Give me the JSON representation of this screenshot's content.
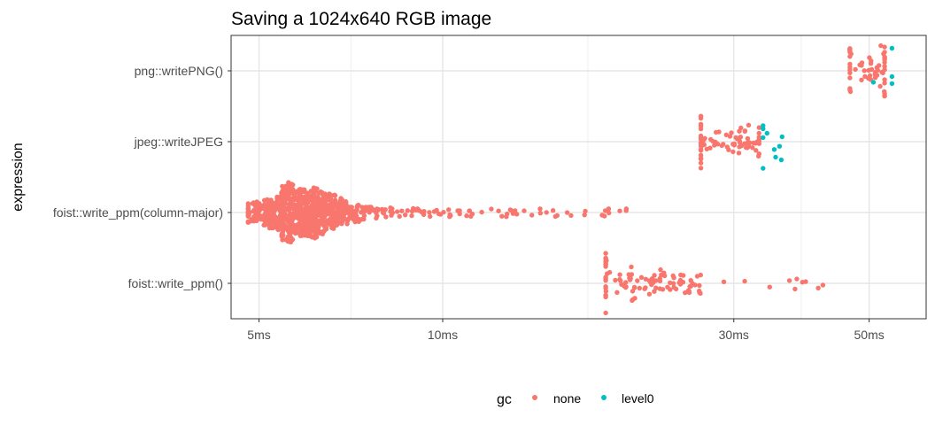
{
  "chart_data": {
    "type": "scatter",
    "subtype": "beeswarm",
    "title": "Saving a 1024x640 RGB image",
    "xlabel": "",
    "ylabel": "expression",
    "x_scale": "log10",
    "x_unit": "ms",
    "xlim": [
      4.5,
      62
    ],
    "x_ticks": [
      {
        "value": 5,
        "label": "5ms"
      },
      {
        "value": 10,
        "label": "10ms"
      },
      {
        "value": 30,
        "label": "30ms"
      },
      {
        "value": 50,
        "label": "50ms"
      }
    ],
    "x_minor_gridlines": [
      7.07,
      17.3,
      38.7
    ],
    "grid": true,
    "categories": [
      "png::writePNG()",
      "jpeg::writeJPEG",
      "foist::write_ppm(column-major)",
      "foist::write_ppm()"
    ],
    "legend": {
      "title": "gc",
      "position": "bottom",
      "entries": [
        {
          "name": "none",
          "color": "#F8766D"
        },
        {
          "name": "level0",
          "color": "#00BFC4"
        }
      ]
    },
    "series": [
      {
        "category": "png::writePNG()",
        "groups": [
          {
            "gc": "none",
            "n": 58,
            "center": 49.5,
            "spread": 0.045,
            "min": 46.5,
            "max": 53.0
          },
          {
            "gc": "level0",
            "n": 4,
            "center": 54.0,
            "spread": 0.02,
            "min": 50.8,
            "max": 54.5
          }
        ]
      },
      {
        "category": "jpeg::writeJPEG",
        "groups": [
          {
            "gc": "none",
            "n": 78,
            "center": 29.5,
            "spread": 0.05,
            "min": 26.5,
            "max": 33.0
          },
          {
            "gc": "level0",
            "n": 10,
            "center": 34.5,
            "spread": 0.02,
            "min": 33.5,
            "max": 36.0
          }
        ]
      },
      {
        "category": "foist::write_ppm(column-major)",
        "groups": [
          {
            "gc": "none",
            "n": 900,
            "center": 5.9,
            "spread": 0.045,
            "min": 4.8,
            "max": 20.0
          }
        ]
      },
      {
        "category": "foist::write_ppm()",
        "groups": [
          {
            "gc": "none",
            "n": 110,
            "center": 21.5,
            "spread": 0.06,
            "min": 18.5,
            "max": 42.0
          }
        ]
      }
    ]
  }
}
